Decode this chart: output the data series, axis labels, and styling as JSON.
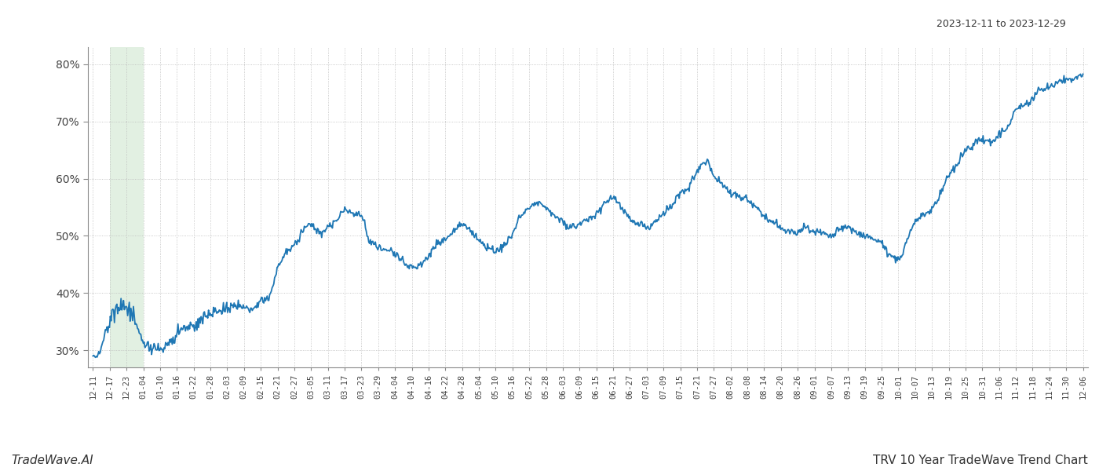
{
  "title_top_right": "2023-12-11 to 2023-12-29",
  "title_bottom": "TRV 10 Year TradeWave Trend Chart",
  "watermark": "TradeWave.AI",
  "line_color": "#1f77b4",
  "line_width": 1.3,
  "highlight_color": "#d6ead6",
  "highlight_alpha": 0.7,
  "ylim": [
    27,
    83
  ],
  "yticks": [
    30,
    40,
    50,
    60,
    70,
    80
  ],
  "background_color": "#ffffff",
  "grid_color": "#bbbbbb",
  "x_labels": [
    "12-11",
    "12-17",
    "12-23",
    "01-04",
    "01-10",
    "01-16",
    "01-22",
    "01-28",
    "02-03",
    "02-09",
    "02-15",
    "02-21",
    "02-27",
    "03-05",
    "03-11",
    "03-17",
    "03-23",
    "03-29",
    "04-04",
    "04-10",
    "04-16",
    "04-22",
    "04-28",
    "05-04",
    "05-10",
    "05-16",
    "05-22",
    "05-28",
    "06-03",
    "06-09",
    "06-15",
    "06-21",
    "06-27",
    "07-03",
    "07-09",
    "07-15",
    "07-21",
    "07-27",
    "08-02",
    "08-08",
    "08-14",
    "08-20",
    "08-26",
    "09-01",
    "09-07",
    "09-13",
    "09-19",
    "09-25",
    "10-01",
    "10-07",
    "10-13",
    "10-19",
    "10-25",
    "10-31",
    "11-06",
    "11-12",
    "11-18",
    "11-24",
    "11-30",
    "12-06"
  ],
  "highlight_label_start": "12-17",
  "highlight_label_end": "12-29",
  "ctrl_x": [
    0,
    0.3,
    1.0,
    1.5,
    2.0,
    2.5,
    3.0,
    3.5,
    4.0,
    4.5,
    5.0,
    5.5,
    6.0,
    6.5,
    7.0,
    7.5,
    8.0,
    8.5,
    9.0,
    9.5,
    10.0,
    10.5,
    11.0,
    11.5,
    12.0,
    12.5,
    13.0,
    13.5,
    14.0,
    14.5,
    15.0,
    15.5,
    16.0,
    16.5,
    17.0,
    17.5,
    18.0,
    18.5,
    19.0,
    19.5,
    20.0,
    20.5,
    21.0,
    21.5,
    22.0,
    22.5,
    23.0,
    23.5,
    24.0,
    24.5,
    25.0,
    25.5,
    26.0,
    26.5,
    27.0,
    27.5,
    28.0,
    28.5,
    29.0,
    29.5,
    30.0,
    30.5,
    31.0,
    31.5,
    32.0,
    32.5,
    33.0,
    33.5,
    34.0,
    34.5,
    35.0,
    35.5,
    36.0,
    36.5,
    37.0,
    37.5,
    38.0,
    38.5,
    39.0,
    39.5,
    40.0,
    40.5,
    41.0,
    41.5,
    42.0,
    42.5,
    43.0,
    43.5,
    44.0,
    44.5,
    45.0,
    45.5,
    46.0,
    46.5,
    47.0,
    47.5,
    48.0,
    48.5,
    49.0,
    49.5,
    50.0,
    50.5,
    51.0,
    51.5,
    52.0,
    52.5,
    53.0,
    53.5,
    54.0,
    54.5,
    55.0,
    55.5,
    56.0,
    56.5,
    57.0,
    57.5,
    58.0,
    58.5,
    59.0
  ],
  "ctrl_y": [
    29.0,
    29.2,
    36.0,
    38.0,
    37.5,
    35.0,
    31.5,
    30.5,
    30.2,
    31.0,
    33.0,
    34.0,
    34.5,
    35.5,
    36.5,
    37.0,
    37.5,
    38.0,
    37.5,
    37.0,
    38.5,
    39.5,
    44.5,
    47.0,
    48.5,
    51.0,
    52.0,
    50.5,
    51.5,
    52.5,
    54.5,
    54.0,
    53.5,
    49.0,
    48.0,
    47.5,
    47.0,
    45.5,
    44.5,
    45.0,
    46.5,
    48.5,
    49.5,
    51.0,
    52.0,
    51.0,
    49.5,
    48.0,
    47.5,
    48.5,
    50.5,
    53.5,
    55.0,
    56.0,
    55.0,
    53.5,
    52.5,
    51.5,
    52.0,
    53.0,
    54.0,
    55.5,
    56.5,
    55.0,
    53.0,
    52.0,
    51.5,
    52.5,
    54.0,
    55.0,
    57.5,
    58.5,
    61.5,
    63.0,
    60.5,
    59.0,
    57.5,
    57.0,
    56.5,
    55.0,
    53.5,
    52.5,
    51.5,
    51.0,
    50.5,
    51.5,
    50.5,
    50.5,
    50.0,
    51.0,
    51.5,
    50.5,
    50.0,
    49.5,
    48.5,
    46.5,
    46.0,
    49.0,
    52.5,
    53.5,
    55.0,
    57.5,
    60.5,
    62.5,
    65.0,
    66.0,
    67.0,
    66.5,
    67.5,
    69.0,
    72.0,
    73.0,
    74.0,
    75.5,
    76.0,
    77.0,
    77.5,
    77.5,
    78.0
  ]
}
